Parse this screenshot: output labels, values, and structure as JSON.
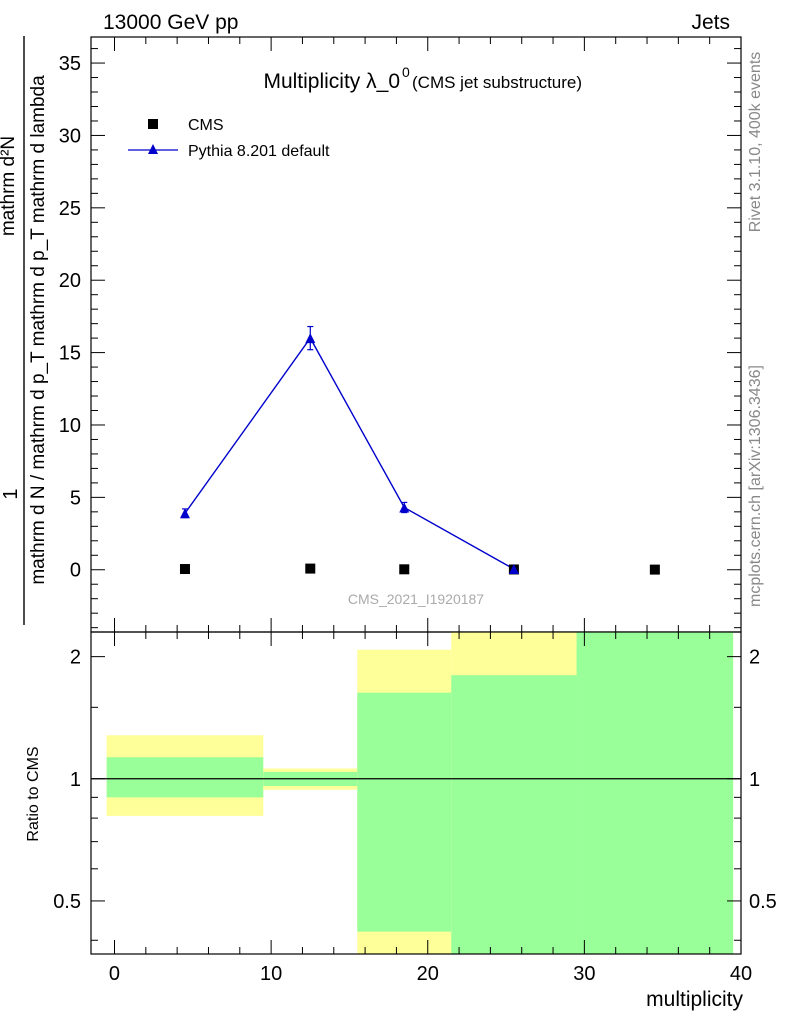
{
  "header": {
    "left": "13000 GeV pp",
    "right": "Jets"
  },
  "side_labels": {
    "rivet": "Rivet 3.1.10,  400k events",
    "mcplots": "mcplots.cern.ch [arXiv:1306.3436]"
  },
  "colors": {
    "cms": "#000000",
    "pythia": "#0000cc",
    "band_inner": "#99ff99",
    "band_outer": "#ffff99"
  },
  "chart_data": [
    {
      "type": "scatter",
      "title_main": "Multiplicity λ_0",
      "title_sup": "0",
      "title_sub": "(CMS jet substructure)",
      "watermark": "CMS_2021_I1920187",
      "ylabel_numerator": "1",
      "ylabel_fraction_top": "mathrm d²N",
      "ylabel_fraction_bottom": "mathrm d N / mathrm d p_T mathrm d p_T mathrm d lambda",
      "xlim": [
        -1.5,
        40
      ],
      "ylim": [
        -4.3,
        36.8
      ],
      "yticks": [
        0,
        5,
        10,
        15,
        20,
        25,
        30,
        35
      ],
      "legend": {
        "cms": "CMS",
        "pythia": "Pythia 8.201 default"
      },
      "series": [
        {
          "name": "CMS",
          "points": [
            {
              "x": 4.5,
              "y": 0.05
            },
            {
              "x": 12.5,
              "y": 0.08
            },
            {
              "x": 18.5,
              "y": 0.03
            },
            {
              "x": 25.5,
              "y": 0.02
            },
            {
              "x": 34.5,
              "y": 0.01
            }
          ]
        },
        {
          "name": "Pythia 8.201 default",
          "points": [
            {
              "x": 4.5,
              "y": 3.9,
              "err": 0.3
            },
            {
              "x": 12.5,
              "y": 16.0,
              "err": 0.8
            },
            {
              "x": 18.5,
              "y": 4.3,
              "err": 0.35
            },
            {
              "x": 25.5,
              "y": 0.05,
              "err": 0.05
            }
          ]
        }
      ]
    },
    {
      "type": "area",
      "ylabel": "Ratio to CMS",
      "xlabel": "multiplicity",
      "xlim": [
        -1.5,
        40
      ],
      "ylim": [
        0.37,
        2.3
      ],
      "log_y": true,
      "xticks": [
        0,
        10,
        20,
        30,
        40
      ],
      "yticks": [
        0.5,
        1,
        2
      ],
      "reference_line": 1,
      "bands": [
        {
          "x0": -0.5,
          "x1": 9.5,
          "outer": [
            0.81,
            1.28
          ],
          "inner": [
            0.9,
            1.13
          ]
        },
        {
          "x0": 9.5,
          "x1": 15.5,
          "outer": [
            0.94,
            1.06
          ],
          "inner": [
            0.96,
            1.04
          ]
        },
        {
          "x0": 15.5,
          "x1": 21.5,
          "outer": [
            0.37,
            2.08
          ],
          "inner": [
            0.42,
            1.63
          ]
        },
        {
          "x0": 21.5,
          "x1": 29.5,
          "outer": [
            0.37,
            2.3
          ],
          "inner": [
            0.37,
            1.8
          ]
        },
        {
          "x0": 29.5,
          "x1": 39.5,
          "outer": [
            0.37,
            2.3
          ],
          "inner": [
            0.37,
            2.3
          ]
        }
      ]
    }
  ]
}
